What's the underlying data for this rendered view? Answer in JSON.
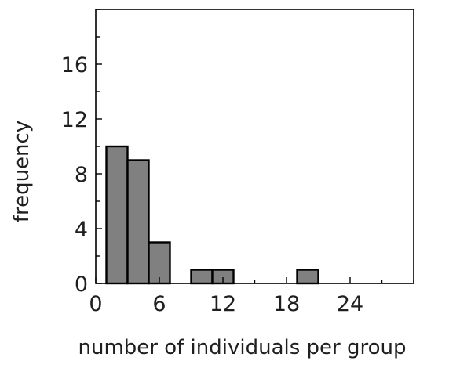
{
  "chart_data": {
    "type": "bar",
    "subtype": "histogram",
    "title": "",
    "xlabel": "number of individuals per group",
    "ylabel": "frequency",
    "bin_width": 2,
    "bins": [
      {
        "x_start": 1,
        "x_end": 3,
        "value": 10
      },
      {
        "x_start": 3,
        "x_end": 5,
        "value": 9
      },
      {
        "x_start": 5,
        "x_end": 7,
        "value": 3
      },
      {
        "x_start": 9,
        "x_end": 11,
        "value": 1
      },
      {
        "x_start": 11,
        "x_end": 13,
        "value": 1
      },
      {
        "x_start": 19,
        "x_end": 21,
        "value": 1
      }
    ],
    "xlim": [
      0,
      30
    ],
    "ylim": [
      0,
      20
    ],
    "xticks": [
      0,
      6,
      12,
      18,
      24
    ],
    "yticks": [
      0,
      4,
      8,
      12,
      16
    ],
    "x_tick_labels": [
      "0",
      "6",
      "12",
      "18",
      "24"
    ],
    "y_tick_labels": [
      "0",
      "4",
      "8",
      "12",
      "16"
    ],
    "grid": false,
    "legend": "none",
    "colors": {
      "bar_fill": "#808080",
      "bar_stroke": "#000000",
      "axis": "#000000",
      "text": "#1f1f1f"
    }
  }
}
